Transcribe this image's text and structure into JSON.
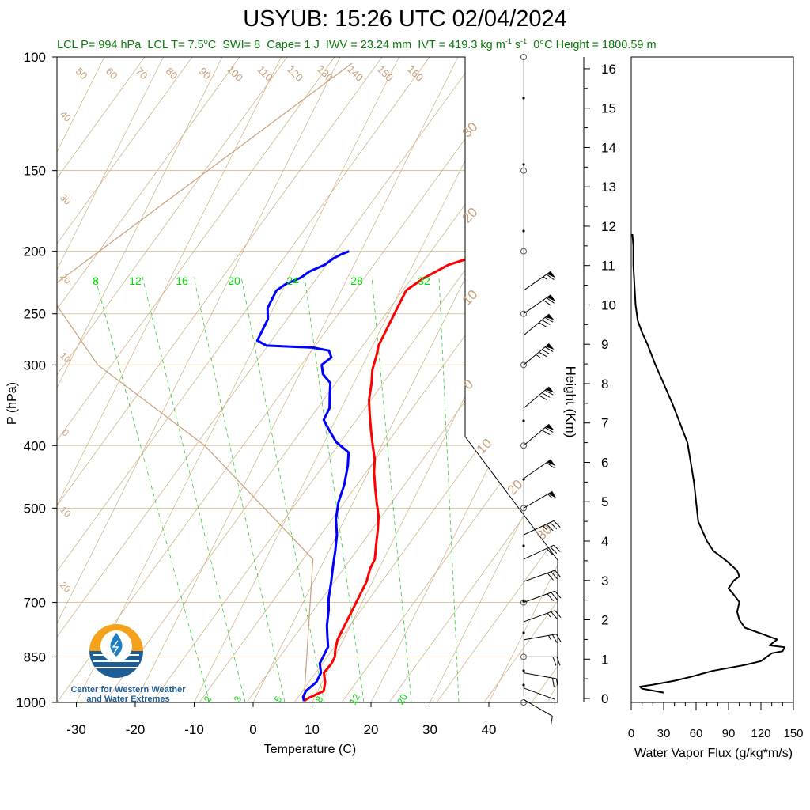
{
  "title": "USYUB: 15:26 UTC 02/04/2024",
  "stats": {
    "lcl_p": "LCL P= 994 hPa",
    "lcl_t_prefix": "LCL T= 7.5",
    "lcl_t_unit": "C",
    "swi": "SWI= 8",
    "cape": "Cape= 1 J",
    "iwv": "IWV = 23.24 mm",
    "ivt_prefix": "IVT = 419.3 kg m",
    "ivt_exp1": "-1",
    "ivt_mid": " s",
    "ivt_exp2": "-1",
    "zero_height": "0°C Height = 1800.59 m"
  },
  "logo_text": [
    "Center for Western Weather",
    "and Water Extremes"
  ],
  "colors": {
    "temperature": "#ff0000",
    "dewpoint": "#0000ff",
    "isotherm": "#d2b48c",
    "mixing_ratio": "#00cc00",
    "flux": "#000000"
  },
  "chart_data": [
    {
      "type": "line",
      "name": "skew-t",
      "xlabel": "Temperature (C)",
      "ylabel": "P (hPa)",
      "x_ticks": [
        "-30",
        "-20",
        "-10",
        "0",
        "10",
        "20",
        "30",
        "40"
      ],
      "y_ticks": [
        "100",
        "150",
        "200",
        "250",
        "300",
        "400",
        "500",
        "700",
        "850",
        "1000"
      ],
      "y_scale": "log",
      "xlim": [
        -34,
        50
      ],
      "ylim": [
        1000,
        100
      ],
      "isotherm_labels": [
        "50",
        "60",
        "70",
        "80",
        "90",
        "100",
        "110",
        "120",
        "130",
        "140",
        "150",
        "160"
      ],
      "dry_adiabat_labels": [
        "40",
        "30",
        "20",
        "10",
        "0",
        "10",
        "20"
      ],
      "moist_adiabat_labels": [
        "30",
        "20",
        "10",
        "0",
        "10",
        "20",
        "30"
      ],
      "mixing_ratio_top_labels": [
        "8",
        "12",
        "16",
        "20",
        "24",
        "28",
        "32"
      ],
      "mixing_ratio_bottom_labels": [
        "2",
        "3",
        "5",
        "8",
        "12",
        "20"
      ],
      "series": [
        {
          "id": "temperature",
          "points": [
            [
              8.5,
              995
            ],
            [
              9,
              985
            ],
            [
              11,
              960
            ],
            [
              10.5,
              930
            ],
            [
              9.5,
              900
            ],
            [
              10,
              870
            ],
            [
              10,
              850
            ],
            [
              9.5,
              830
            ],
            [
              9,
              800
            ],
            [
              9,
              760
            ],
            [
              9,
              720
            ],
            [
              9,
              690
            ],
            [
              9,
              650
            ],
            [
              8.5,
              620
            ],
            [
              8.5,
              600
            ],
            [
              7.5,
              570
            ],
            [
              6.5,
              540
            ],
            [
              5.5,
              515
            ],
            [
              4,
              490
            ],
            [
              2.5,
              465
            ],
            [
              1,
              440
            ],
            [
              0,
              420
            ],
            [
              -1.5,
              400
            ],
            [
              -3,
              380
            ],
            [
              -4.5,
              360
            ],
            [
              -6,
              340
            ],
            [
              -7,
              320
            ],
            [
              -8,
              305
            ],
            [
              -8.5,
              290
            ],
            [
              -9,
              280
            ],
            [
              -9,
              270
            ],
            [
              -9,
              260
            ],
            [
              -9,
              250
            ],
            [
              -9,
              240
            ],
            [
              -9,
              230
            ],
            [
              -7,
              220
            ],
            [
              -4,
              210
            ],
            [
              -1,
              205
            ],
            [
              0,
              200
            ]
          ]
        },
        {
          "id": "dewpoint",
          "points": [
            [
              8.5,
              995
            ],
            [
              8,
              980
            ],
            [
              8,
              960
            ],
            [
              9,
              930
            ],
            [
              9,
              900
            ],
            [
              8,
              870
            ],
            [
              8,
              850
            ],
            [
              8,
              820
            ],
            [
              7,
              790
            ],
            [
              6,
              760
            ],
            [
              5,
              720
            ],
            [
              4,
              690
            ],
            [
              3,
              650
            ],
            [
              2,
              615
            ],
            [
              1,
              580
            ],
            [
              0,
              550
            ],
            [
              -1.5,
              520
            ],
            [
              -2.5,
              490
            ],
            [
              -3,
              460
            ],
            [
              -4,
              430
            ],
            [
              -5,
              410
            ],
            [
              -8,
              395
            ],
            [
              -10,
              380
            ],
            [
              -12,
              365
            ],
            [
              -12,
              350
            ],
            [
              -13,
              335
            ],
            [
              -14,
              320
            ],
            [
              -16,
              310
            ],
            [
              -17,
              300
            ],
            [
              -16,
              292
            ],
            [
              -17,
              285
            ],
            [
              -20,
              282
            ],
            [
              -28,
              280
            ],
            [
              -30,
              275
            ],
            [
              -30,
              265
            ],
            [
              -30,
              255
            ],
            [
              -31,
              245
            ],
            [
              -31,
              238
            ],
            [
              -31,
              230
            ],
            [
              -30,
              225
            ],
            [
              -28,
              220
            ],
            [
              -27,
              215
            ],
            [
              -25,
              210
            ],
            [
              -24,
              205
            ],
            [
              -23,
              202
            ],
            [
              -22,
              200
            ]
          ]
        }
      ],
      "wind_barbs": [
        {
          "p": 990,
          "speed_kt": 10,
          "dir_deg": 300
        },
        {
          "p": 950,
          "speed_kt": 10,
          "dir_deg": 290
        },
        {
          "p": 900,
          "speed_kt": 20,
          "dir_deg": 280
        },
        {
          "p": 850,
          "speed_kt": 20,
          "dir_deg": 270
        },
        {
          "p": 800,
          "speed_kt": 25,
          "dir_deg": 260
        },
        {
          "p": 750,
          "speed_kt": 25,
          "dir_deg": 250
        },
        {
          "p": 700,
          "speed_kt": 30,
          "dir_deg": 250
        },
        {
          "p": 650,
          "speed_kt": 30,
          "dir_deg": 250
        },
        {
          "p": 600,
          "speed_kt": 30,
          "dir_deg": 245
        },
        {
          "p": 550,
          "speed_kt": 35,
          "dir_deg": 245
        },
        {
          "p": 500,
          "speed_kt": 55,
          "dir_deg": 240
        },
        {
          "p": 450,
          "speed_kt": 60,
          "dir_deg": 235
        },
        {
          "p": 400,
          "speed_kt": 70,
          "dir_deg": 230
        },
        {
          "p": 350,
          "speed_kt": 80,
          "dir_deg": 230
        },
        {
          "p": 300,
          "speed_kt": 85,
          "dir_deg": 230
        },
        {
          "p": 270,
          "speed_kt": 80,
          "dir_deg": 230
        },
        {
          "p": 250,
          "speed_kt": 70,
          "dir_deg": 235
        },
        {
          "p": 230,
          "speed_kt": 65,
          "dir_deg": 235
        }
      ]
    },
    {
      "type": "line",
      "name": "water-vapor-flux",
      "xlabel": "Water Vapor Flux (g/kg*m/s)",
      "ylabel": "Height (Km)",
      "x_ticks": [
        "0",
        "30",
        "60",
        "90",
        "120",
        "150"
      ],
      "y_ticks": [
        "0",
        "1",
        "2",
        "3",
        "4",
        "5",
        "6",
        "7",
        "8",
        "9",
        "10",
        "11",
        "12",
        "13",
        "14",
        "15",
        "16"
      ],
      "xlim": [
        0,
        150
      ],
      "ylim": [
        -0.1,
        16.3
      ],
      "points": [
        [
          30,
          0.15
        ],
        [
          10,
          0.25
        ],
        [
          8,
          0.3
        ],
        [
          20,
          0.35
        ],
        [
          40,
          0.45
        ],
        [
          55,
          0.55
        ],
        [
          75,
          0.7
        ],
        [
          105,
          0.85
        ],
        [
          120,
          0.95
        ],
        [
          125,
          1.05
        ],
        [
          130,
          1.15
        ],
        [
          140,
          1.2
        ],
        [
          142,
          1.3
        ],
        [
          128,
          1.35
        ],
        [
          135,
          1.5
        ],
        [
          120,
          1.65
        ],
        [
          105,
          1.8
        ],
        [
          100,
          2.0
        ],
        [
          98,
          2.2
        ],
        [
          100,
          2.45
        ],
        [
          96,
          2.6
        ],
        [
          90,
          2.8
        ],
        [
          95,
          3.0
        ],
        [
          100,
          3.1
        ],
        [
          98,
          3.25
        ],
        [
          88,
          3.5
        ],
        [
          76,
          3.75
        ],
        [
          70,
          4.0
        ],
        [
          62,
          4.5
        ],
        [
          60,
          5.0
        ],
        [
          58,
          5.5
        ],
        [
          55,
          6.0
        ],
        [
          52,
          6.5
        ],
        [
          45,
          7.0
        ],
        [
          38,
          7.5
        ],
        [
          30,
          8.0
        ],
        [
          22,
          8.5
        ],
        [
          15,
          9.0
        ],
        [
          10,
          9.3
        ],
        [
          6,
          9.6
        ],
        [
          4,
          10
        ],
        [
          3,
          10.5
        ],
        [
          2,
          11
        ],
        [
          2,
          11.5
        ],
        [
          1,
          11.8
        ]
      ]
    }
  ]
}
